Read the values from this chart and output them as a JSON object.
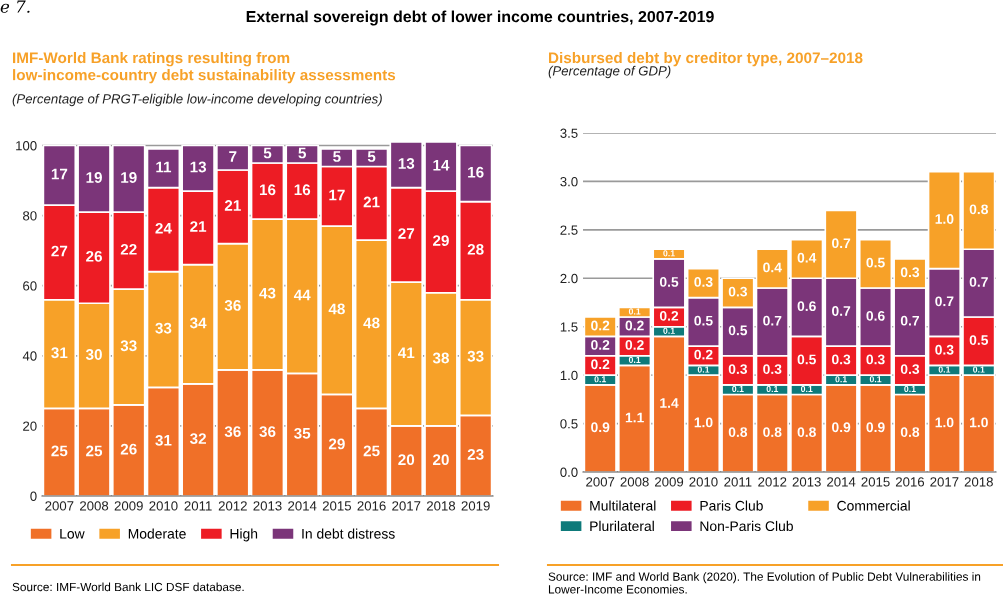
{
  "chart_data": [
    {
      "type": "bar",
      "stacked": true,
      "title": "IMF-World Bank ratings resulting from\nlow-income-country debt sustainability assessments",
      "subtitle": "(Percentage of PRGT-eligible low-income developing countries)",
      "annotations": [
        "e 7.",
        "External sovereign debt of lower income countries, 2007-2019",
        "Source: IMF-World Bank LIC DSF database."
      ],
      "categories": [
        "2007",
        "2008",
        "2009",
        "2010",
        "2011",
        "2012",
        "2013",
        "2014",
        "2015",
        "2016",
        "2017",
        "2018",
        "2019"
      ],
      "series": [
        {
          "name": "Low",
          "color": "#f07028",
          "values": [
            25,
            25,
            26,
            31,
            32,
            36,
            36,
            35,
            29,
            25,
            20,
            20,
            23
          ]
        },
        {
          "name": "Moderate",
          "color": "#f7a128",
          "values": [
            31,
            30,
            33,
            33,
            34,
            36,
            43,
            44,
            48,
            48,
            41,
            38,
            33
          ]
        },
        {
          "name": "High",
          "color": "#ed1c24",
          "values": [
            27,
            26,
            22,
            24,
            21,
            21,
            16,
            16,
            17,
            21,
            27,
            29,
            28
          ]
        },
        {
          "name": "In debt distress",
          "color": "#7b3579",
          "values": [
            17,
            19,
            19,
            11,
            13,
            7,
            5,
            5,
            5,
            5,
            13,
            14,
            16
          ]
        }
      ],
      "ylim": [
        0,
        101
      ],
      "yticks": [
        0,
        20,
        40,
        60,
        80,
        100
      ],
      "grid": "y",
      "legend": "bottom",
      "data_labels": true
    },
    {
      "type": "bar",
      "stacked": true,
      "title": "Disbursed debt by creditor type, 2007–2018",
      "subtitle": "(Percentage of GDP)",
      "annotations": [
        "Source: IMF and World Bank (2020). The Evolution of Public Debt Vulnerabilities in\nLower-Income Economies."
      ],
      "categories": [
        "2007",
        "2008",
        "2009",
        "2010",
        "2011",
        "2012",
        "2013",
        "2014",
        "2015",
        "2016",
        "2017",
        "2018"
      ],
      "series": [
        {
          "name": "Multilateral",
          "color": "#f07028",
          "values": [
            0.9,
            1.1,
            1.4,
            1.0,
            0.8,
            0.8,
            0.8,
            0.9,
            0.9,
            0.8,
            1.0,
            1.0
          ],
          "value_labels": [
            "0.9",
            "1.1",
            "1.4",
            "1.0",
            "0.8",
            "0.8",
            "0.8",
            "0.9",
            "0.9",
            "0.8",
            "1.0",
            "1.0"
          ]
        },
        {
          "name": "Plurilateral",
          "color": "#0e7a7a",
          "values": [
            0.1,
            0.1,
            0.1,
            0.1,
            0.1,
            0.1,
            0.1,
            0.1,
            0.1,
            0.1,
            0.1,
            0.1
          ],
          "value_labels": [
            "0.1",
            "0.1",
            "0.1",
            "0.1",
            "0.1",
            "0.1",
            "0.1",
            "0.1",
            "0.1",
            "0.1",
            "0.1",
            "0.1"
          ]
        },
        {
          "name": "Paris Club",
          "color": "#ed1c24",
          "values": [
            0.2,
            0.2,
            0.2,
            0.2,
            0.3,
            0.3,
            0.5,
            0.3,
            0.3,
            0.3,
            0.3,
            0.5
          ],
          "value_labels": [
            "0.2",
            "0.2",
            "0.2",
            "0.2",
            "0.3",
            "0.3",
            "0.5",
            "0.3",
            "0.3",
            "0.3",
            "0.3",
            "0.5"
          ]
        },
        {
          "name": "Non-Paris Club",
          "color": "#7b3579",
          "values": [
            0.2,
            0.2,
            0.5,
            0.5,
            0.5,
            0.7,
            0.6,
            0.7,
            0.6,
            0.7,
            0.7,
            0.7
          ],
          "value_labels": [
            "0.2",
            "0.2",
            "0.5",
            "0.5",
            "0.5",
            "0.7",
            "0.6",
            "0.7",
            "0.6",
            "0.7",
            "0.7",
            "0.7"
          ]
        },
        {
          "name": "Commercial",
          "color": "#f7a128",
          "values": [
            0.2,
            0.1,
            0.1,
            0.3,
            0.3,
            0.4,
            0.4,
            0.7,
            0.5,
            0.3,
            1.0,
            0.8
          ],
          "value_labels": [
            "0.2",
            "0.1",
            "0.1",
            "0.3",
            "0.3",
            "0.4",
            "0.4",
            "0.7",
            "0.5",
            "0.3",
            "1.0",
            "0.8"
          ]
        }
      ],
      "ylim": [
        0,
        3.5
      ],
      "yticks": [
        {
          "value": 0,
          "label": "0.0"
        },
        {
          "value": 0.5,
          "label": "0.5"
        },
        {
          "value": 1,
          "label": "1.0"
        },
        {
          "value": 1.5,
          "label": "1.5"
        },
        {
          "value": 2,
          "label": "2.0"
        },
        {
          "value": 2.5,
          "label": "2.5"
        },
        {
          "value": 3,
          "label": "3.0"
        },
        {
          "value": 3.5,
          "label": "3.5"
        }
      ],
      "grid": "y",
      "legend": "bottom"
    }
  ]
}
